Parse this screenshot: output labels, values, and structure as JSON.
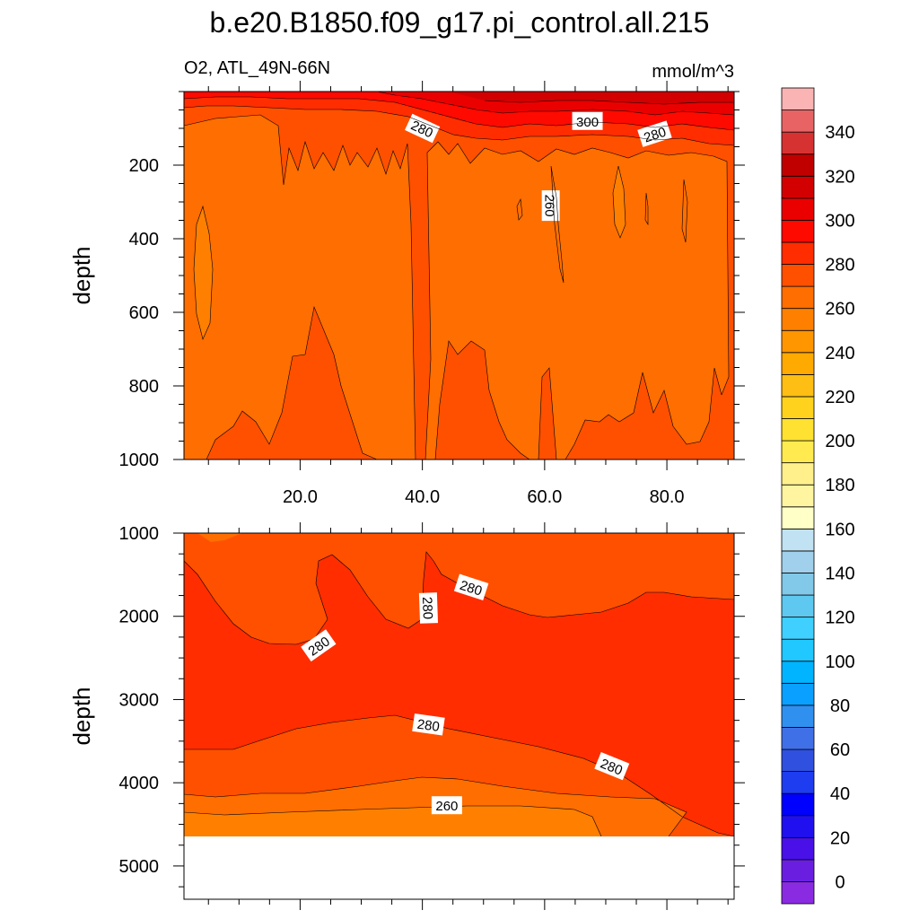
{
  "chart_data": {
    "type": "contour",
    "title": "b.e20.B1850.f09_g17.pi_control.all.215",
    "variable_label": "O2, ATL_49N-66N",
    "units": "mmol/m^3",
    "ylabel": "depth",
    "x_ticks": [
      "20.0",
      "40.0",
      "60.0",
      "80.0"
    ],
    "x_tick_values": [
      20,
      40,
      60,
      80
    ],
    "xlim": [
      1,
      91
    ],
    "panels": [
      {
        "name": "upper",
        "ylim": [
          0,
          1000
        ],
        "y_ticks": [
          "200",
          "400",
          "600",
          "800",
          "1000"
        ],
        "y_tick_values": [
          200,
          400,
          600,
          800,
          1000
        ],
        "contour_labels": [
          {
            "text": "280",
            "x": 40,
            "y": 100,
            "angle": 25
          },
          {
            "text": "300",
            "x": 67,
            "y": 80,
            "angle": 0
          },
          {
            "text": "280",
            "x": 78,
            "y": 115,
            "angle": -18
          },
          {
            "text": "260",
            "x": 61,
            "y": 310,
            "angle": 90
          }
        ]
      },
      {
        "name": "lower",
        "ylim": [
          1000,
          5400
        ],
        "y_ticks": [
          "1000",
          "2000",
          "3000",
          "4000",
          "5000"
        ],
        "y_tick_values": [
          1000,
          2000,
          3000,
          4000,
          5000
        ],
        "contour_labels": [
          {
            "text": "280",
            "x": 23,
            "y": 2350,
            "angle": -35
          },
          {
            "text": "280",
            "x": 41,
            "y": 1900,
            "angle": 88
          },
          {
            "text": "280",
            "x": 48,
            "y": 1650,
            "angle": 18
          },
          {
            "text": "280",
            "x": 41,
            "y": 3300,
            "angle": 8
          },
          {
            "text": "280",
            "x": 71,
            "y": 3800,
            "angle": 22
          },
          {
            "text": "260",
            "x": 44,
            "y": 4270,
            "angle": 0
          }
        ]
      }
    ],
    "colorbar": {
      "levels": [
        -5,
        0,
        10,
        20,
        30,
        40,
        50,
        60,
        70,
        80,
        90,
        100,
        110,
        120,
        130,
        140,
        150,
        160,
        170,
        180,
        190,
        200,
        210,
        220,
        230,
        240,
        250,
        260,
        270,
        280,
        290,
        300,
        310,
        320,
        330,
        340,
        350,
        360
      ],
      "labels": [
        "0",
        "20",
        "40",
        "60",
        "80",
        "100",
        "120",
        "140",
        "160",
        "180",
        "200",
        "220",
        "240",
        "260",
        "280",
        "300",
        "320",
        "340"
      ],
      "label_values": [
        0,
        20,
        40,
        60,
        80,
        100,
        120,
        140,
        160,
        180,
        200,
        220,
        240,
        260,
        280,
        300,
        320,
        340
      ],
      "colors": [
        "#8a2be2",
        "#6a1fe0",
        "#4a10e8",
        "#2010f0",
        "#0000ff",
        "#1e3cf0",
        "#3050e0",
        "#4070e8",
        "#3090f0",
        "#0aa0ff",
        "#00b4ff",
        "#20c8ff",
        "#40d0ff",
        "#5ec8f0",
        "#82c8e8",
        "#a0d0ec",
        "#c0e2f2",
        "#ffffc8",
        "#fff5a0",
        "#fff08c",
        "#ffeb50",
        "#ffe132",
        "#ffd21e",
        "#ffbe14",
        "#ffaa00",
        "#ff9600",
        "#ff8000",
        "#ff6e00",
        "#ff5000",
        "#ff2d00",
        "#ff0a00",
        "#eb0000",
        "#d20000",
        "#c00000",
        "#d73232",
        "#e86464",
        "#fab4b4"
      ]
    },
    "fill_colors": {
      "c240": "#ff9600",
      "c250": "#ff8000",
      "c260": "#ff6e00",
      "c270": "#ff5000",
      "c280": "#ff2d00",
      "c290": "#ff0a00",
      "c300": "#eb0000",
      "c310": "#d20000"
    }
  }
}
